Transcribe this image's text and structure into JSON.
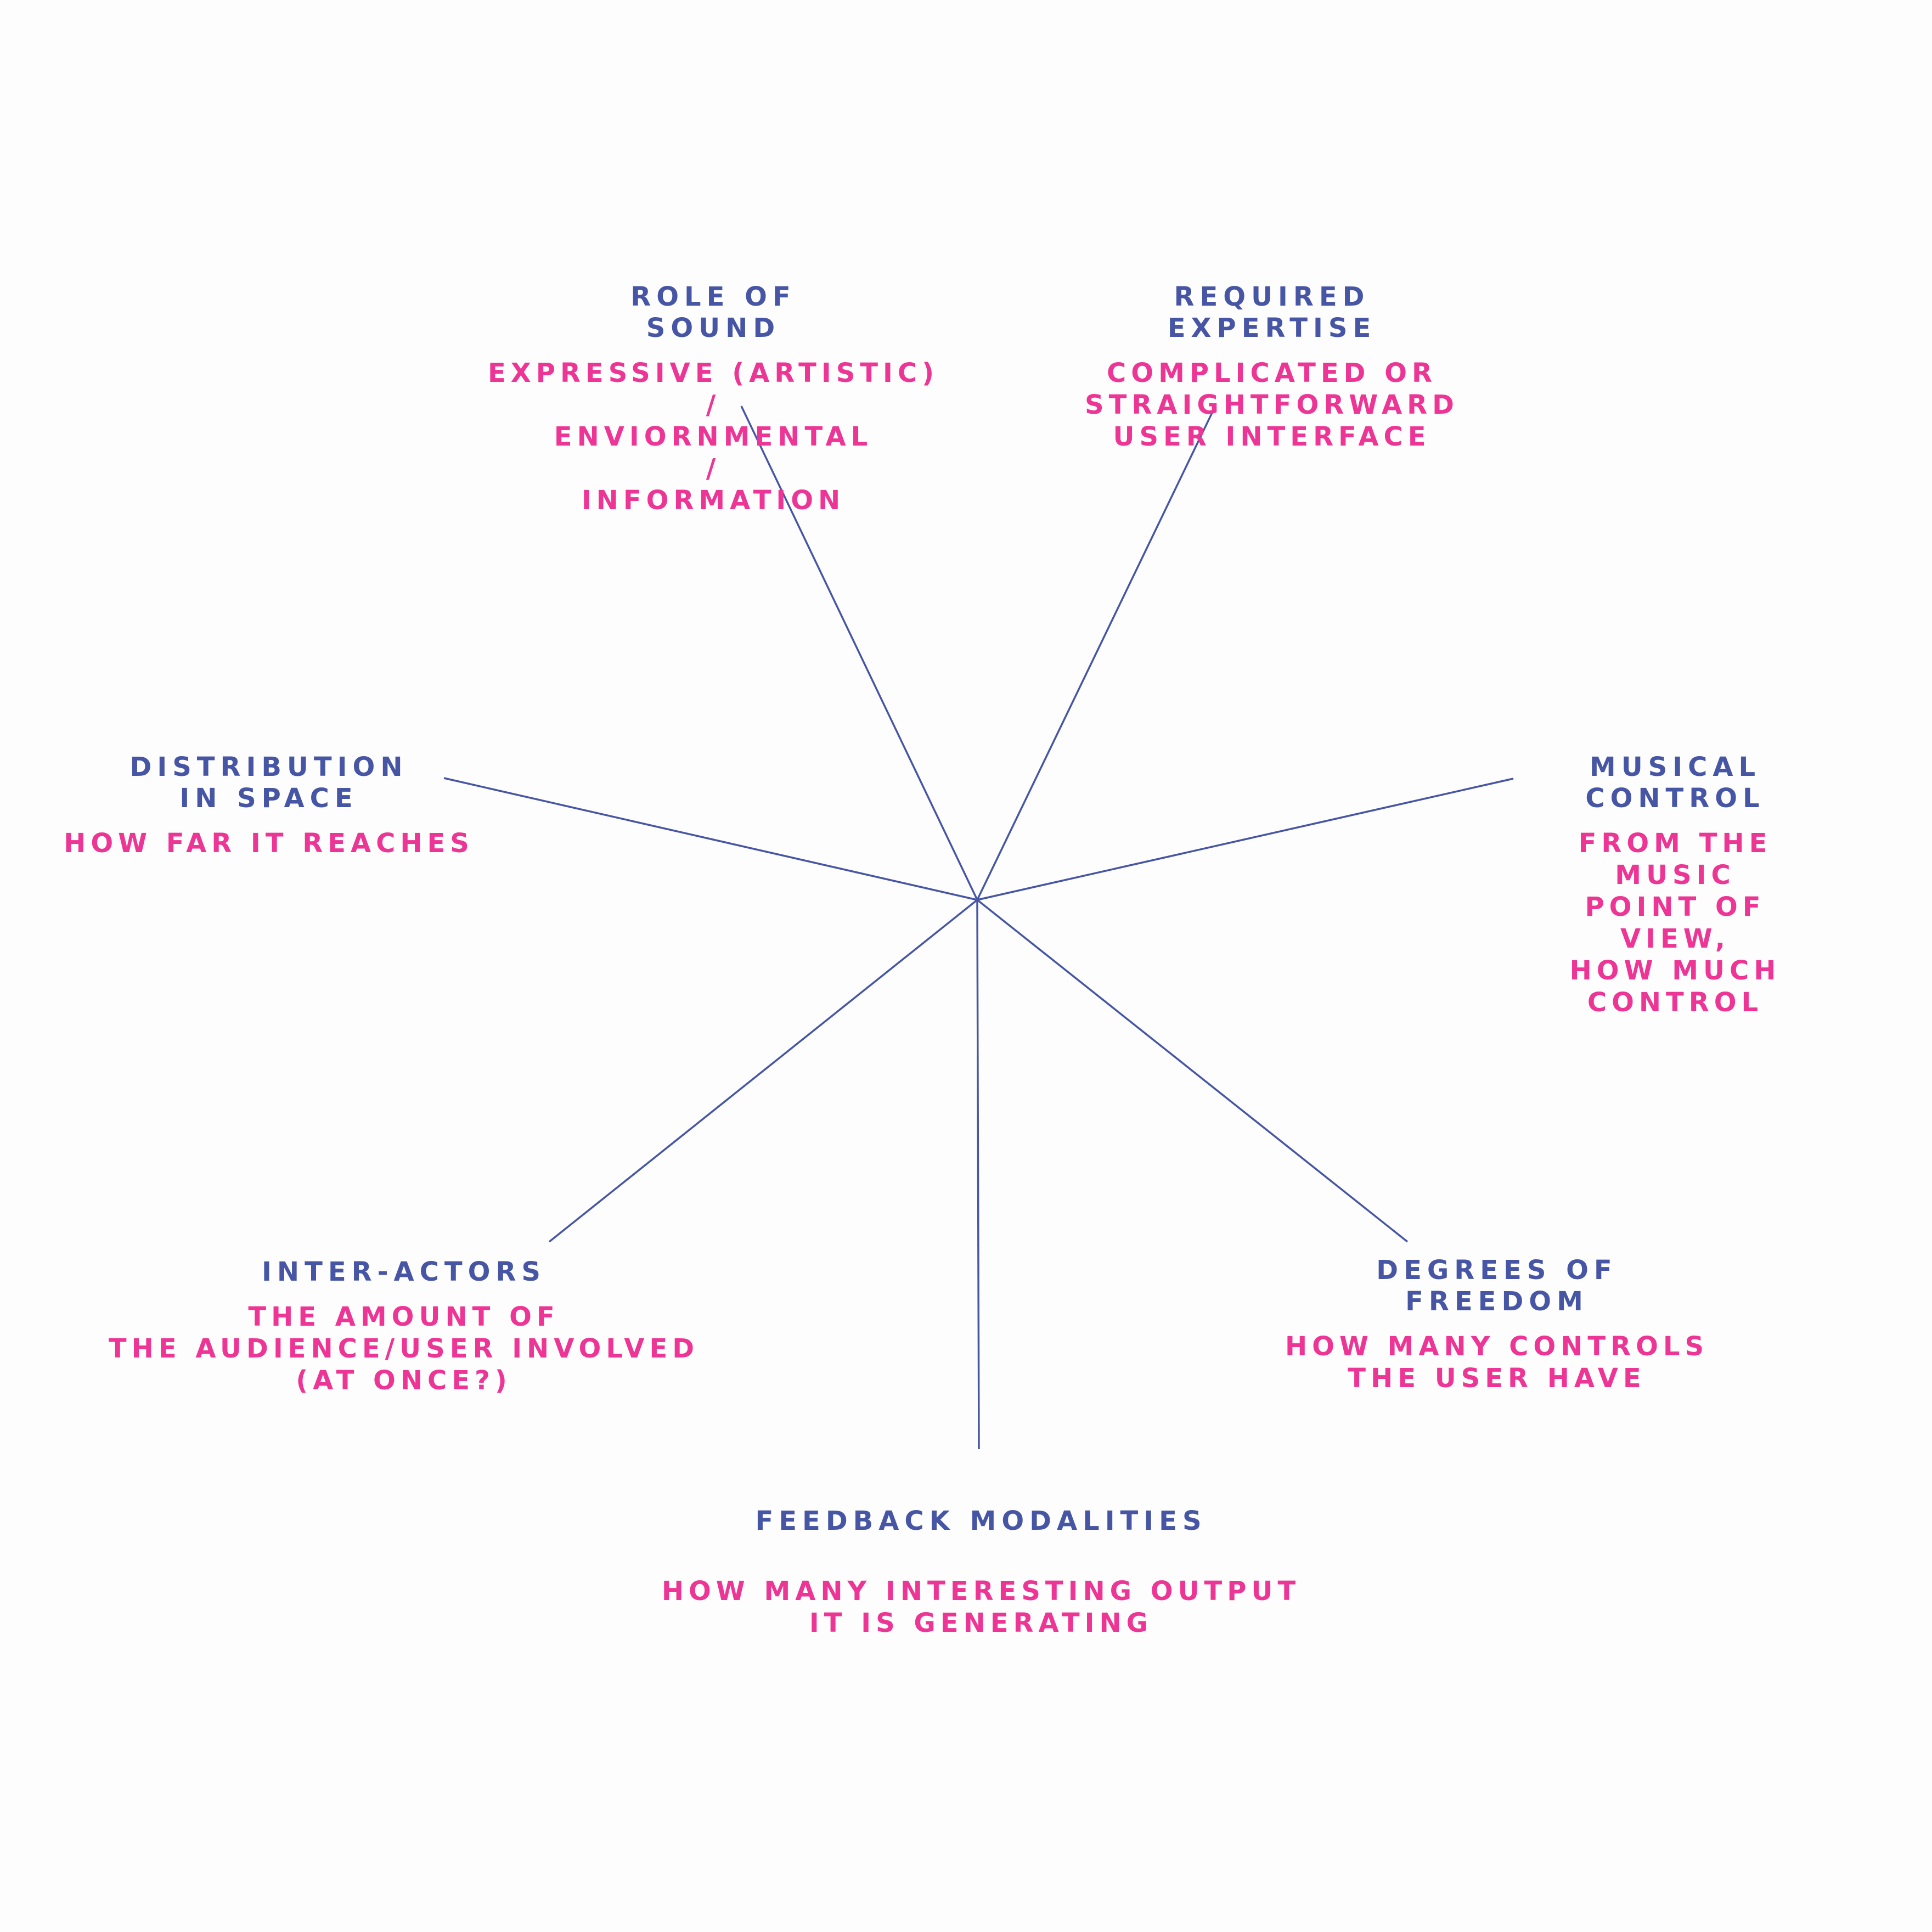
{
  "colors": {
    "background": "#fdfdfd",
    "title": "#4756a4",
    "description": "#ed3595",
    "axis_line": "#4756a4"
  },
  "axes": [
    {
      "id": "role-of-sound",
      "title": "ROLE OF\nSOUND",
      "description": "EXPRESSIVE (ARTISTIC)\n/\nENVIORNMENTAL\n/\nINFORMATION"
    },
    {
      "id": "required-expertise",
      "title": "REQUIRED\nEXPERTISE",
      "description": "COMPLICATED OR\nSTRAIGHTFORWARD\nUSER INTERFACE"
    },
    {
      "id": "musical-control",
      "title": "MUSICAL\nCONTROL",
      "description": "FROM THE MUSIC\nPOINT OF VIEW,\nHOW MUCH CONTROL"
    },
    {
      "id": "degrees-of-freedom",
      "title": "DEGREES OF\nFREEDOM",
      "description": "HOW MANY CONTROLS\nTHE USER HAVE"
    },
    {
      "id": "feedback-modalities",
      "title": "FEEDBACK MODALITIES",
      "description": "HOW MANY INTERESTING OUTPUT\nIT IS GENERATING"
    },
    {
      "id": "inter-actors",
      "title": "INTER-ACTORS",
      "description": "THE AMOUNT OF\nTHE AUDIENCE/USER INVOLVED\n(AT ONCE?)"
    },
    {
      "id": "distribution-in-space",
      "title": "DISTRIBUTION\nIN SPACE",
      "description": "HOW FAR IT REACHES"
    }
  ]
}
